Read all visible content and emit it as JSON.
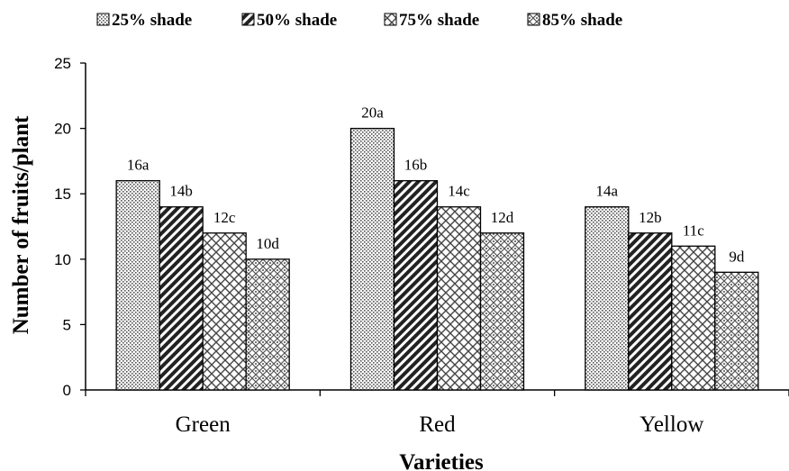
{
  "chart_data": {
    "type": "bar",
    "title": "",
    "xlabel": "Varieties",
    "ylabel": "Number of fruits/plant",
    "categories": [
      "Green",
      "Red",
      "Yellow"
    ],
    "ylim": [
      0,
      25
    ],
    "yticks": [
      "0",
      "5",
      "10",
      "15",
      "20",
      "25"
    ],
    "grid": false,
    "legend_position": "top",
    "series": [
      {
        "name": "25% shade",
        "pattern": "dots",
        "values": [
          16,
          20,
          14
        ],
        "labels": [
          "16a",
          "20a",
          "14a"
        ]
      },
      {
        "name": "50% shade",
        "pattern": "diagonal-dense",
        "values": [
          14,
          16,
          12
        ],
        "labels": [
          "14b",
          "16b",
          "12b"
        ]
      },
      {
        "name": "75% shade",
        "pattern": "crosshatch",
        "values": [
          12,
          14,
          11
        ],
        "labels": [
          "12c",
          "14c",
          "11c"
        ]
      },
      {
        "name": "85% shade",
        "pattern": "diamond-fine",
        "values": [
          10,
          12,
          9
        ],
        "labels": [
          "10d",
          "12d",
          "9d"
        ]
      }
    ],
    "colors": {
      "bar_stroke": "#000000",
      "axis": "#000000",
      "pattern_ink": "#333333"
    }
  }
}
